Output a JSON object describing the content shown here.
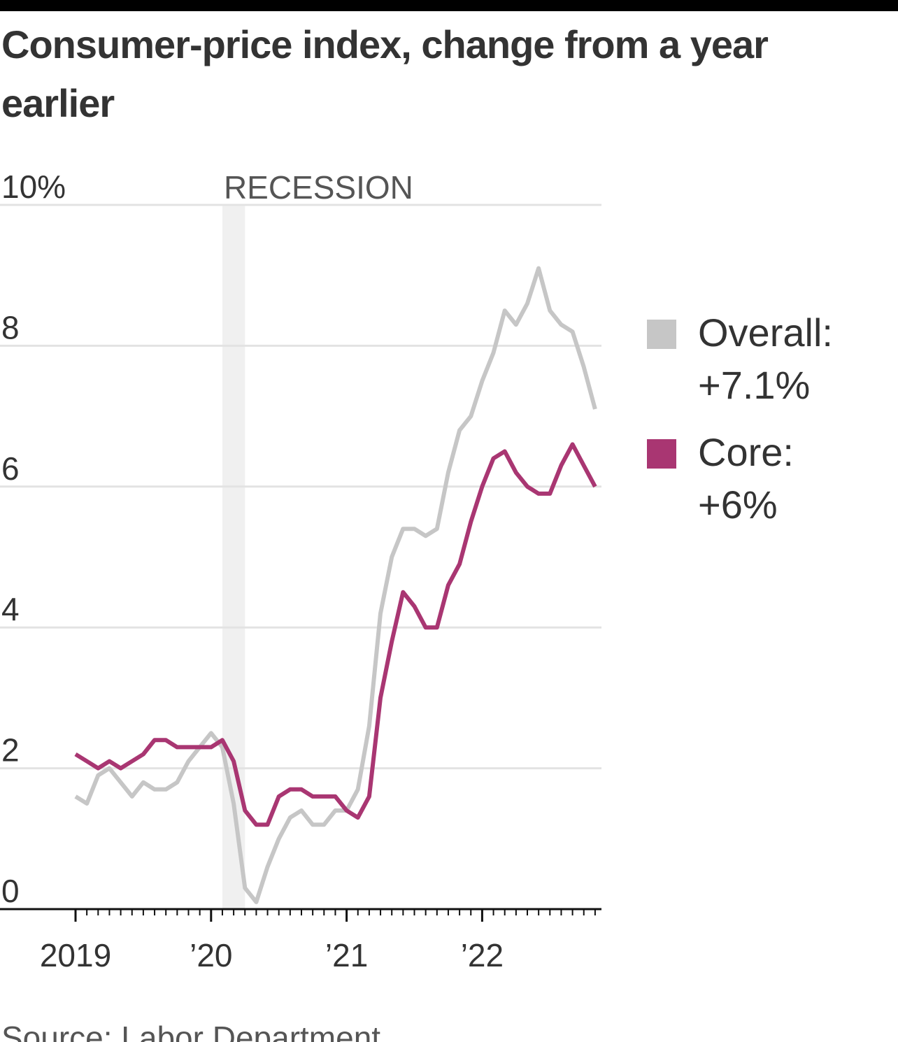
{
  "chart_data": {
    "type": "line",
    "title": "Consumer-price index, change from a year earlier",
    "source": "Source: Labor Department",
    "categories": [
      "2019",
      null,
      null,
      null,
      null,
      null,
      null,
      null,
      null,
      null,
      null,
      null,
      "’20",
      null,
      null,
      null,
      null,
      null,
      null,
      null,
      null,
      null,
      null,
      null,
      "’21",
      null,
      null,
      null,
      null,
      null,
      null,
      null,
      null,
      null,
      null,
      null,
      "’22",
      null,
      null,
      null,
      null,
      null,
      null,
      null,
      null,
      null,
      null
    ],
    "series": [
      {
        "name": "Overall:",
        "end_label": "+7.1%",
        "color": "#c6c6c6",
        "values": [
          1.6,
          1.5,
          1.9,
          2.0,
          1.8,
          1.6,
          1.8,
          1.7,
          1.7,
          1.8,
          2.1,
          2.3,
          2.5,
          2.3,
          1.5,
          0.3,
          0.1,
          0.6,
          1.0,
          1.3,
          1.4,
          1.2,
          1.2,
          1.4,
          1.4,
          1.7,
          2.6,
          4.2,
          5.0,
          5.4,
          5.4,
          5.3,
          5.4,
          6.2,
          6.8,
          7.0,
          7.5,
          7.9,
          8.5,
          8.3,
          8.6,
          9.1,
          8.5,
          8.3,
          8.2,
          7.7,
          7.1
        ]
      },
      {
        "name": "Core:",
        "end_label": "+6%",
        "color": "#a93672",
        "values": [
          2.2,
          2.1,
          2.0,
          2.1,
          2.0,
          2.1,
          2.2,
          2.4,
          2.4,
          2.3,
          2.3,
          2.3,
          2.3,
          2.4,
          2.1,
          1.4,
          1.2,
          1.2,
          1.6,
          1.7,
          1.7,
          1.6,
          1.6,
          1.6,
          1.4,
          1.3,
          1.6,
          3.0,
          3.8,
          4.5,
          4.3,
          4.0,
          4.0,
          4.6,
          4.9,
          5.5,
          6.0,
          6.4,
          6.5,
          6.2,
          6.0,
          5.9,
          5.9,
          6.3,
          6.6,
          6.3,
          6.0
        ]
      }
    ],
    "recession": {
      "label": "RECESSION",
      "start": 13,
      "end": 15,
      "color": "#f0f0f0"
    },
    "ylim": [
      0,
      10
    ],
    "yticks": [
      0,
      2,
      4,
      6,
      8,
      {
        "value": 10,
        "label": "10%"
      }
    ],
    "grid": true
  }
}
